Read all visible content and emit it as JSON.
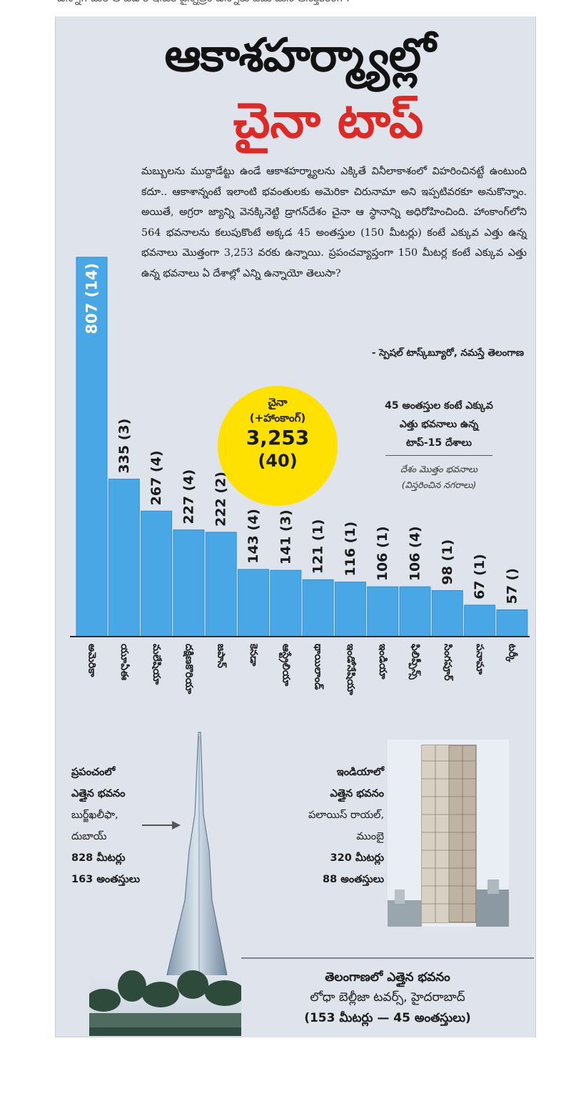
{
  "header_strip": "ఉన్నా.. మరి ఆ ఎడారి ఇసుక పైన్నిత్రం ఉన్నారు ఏమి మన ఆసక్తికరంగా.",
  "headline": {
    "line1": "ఆకాశహర్మ్యాల్లో",
    "line2": "చైనా టాప్"
  },
  "intro": "మబ్బులను ముద్దాడేట్టు ఉండే ఆకాశహర్మ్యాలను ఎక్కితే వినీలాకాశంలో విహరించినట్టే ఉంటుంది కదూ.. ఆకాశాన్నంటే ఇలాంటి భవంతులకు అమెరికా చిరునామా అని ఇప్పటివరకూ అనుకొన్నాం. అయితే, అగ్రరా జ్యాన్ని వెనక్కినెట్టి డ్రాగన్‌దేశం చైనా ఆ స్థానాన్ని అధిరోహించింది. హాంకాంగ్‌లోని 564 భవనాలను కలుపుకొంటే అక్కడ 45 అంతస్తుల (150 మీటర్లు) కంటే ఎక్కువ ఎత్తు ఉన్న భవనాలు మొత్తంగా 3,253 వరకు ఉన్నాయి. ప్రపంచవ్యాప్తంగా 150 మీటర్ల కంటే ఎక్కువ ఎత్తు ఉన్న భవనాలు ఏ దేశాల్లో ఎన్ని ఉన్నాయో తెలుసా?",
  "credit": "- స్పెషల్ టాస్క్‌బ్యూరో, నమస్తే తెలంగాణ",
  "china_callout": {
    "country": "చైనా",
    "note": "(+హాంకాంగ్)",
    "value": "3,253",
    "cities": "(40)"
  },
  "legend": {
    "title_lines": [
      "45 అంతస్తుల కంటే ఎక్కువ",
      "ఎత్తు భవనాలు ఉన్న",
      "టాప్-15 దేశాలు"
    ],
    "sub1": "దేశం మొత్తం భవనాలు",
    "sub2": "(విస్తరించిన నగరాలు)"
  },
  "colors": {
    "bar": "#4aa7e5",
    "bar_stroke": "#2f8fd1",
    "title_red": "#dd2a24",
    "callout": "#ffe100",
    "panel": "#dfe3ec"
  },
  "chart_data": {
    "type": "bar",
    "categories": [
      "అమెరికా",
      "యూఏఈ",
      "మలేషియా",
      "దక్షిణకొరియా",
      "జపాన్",
      "కెనడా",
      "ఆస్ట్రేలియా",
      "థాయిలాండ్",
      "ఇండోనేషియా",
      "ఇండియా",
      "ఫిలిప్పీన్స్",
      "సింగపూర్",
      "పనామా",
      "టర్కీ"
    ],
    "values": [
      807,
      335,
      267,
      227,
      222,
      143,
      141,
      121,
      116,
      106,
      106,
      98,
      67,
      57
    ],
    "labels": [
      "807 (14)",
      "335 (3)",
      "267 (4)",
      "227 (4)",
      "222 (2)",
      "143 (4)",
      "141 (3)",
      "121 (1)",
      "116 (1)",
      "106 (1)",
      "106 (4)",
      "98 (1)",
      "67 (1)",
      "57 ()"
    ],
    "ylim": [
      0,
      807
    ],
    "grid": false
  },
  "world_tallest": {
    "lines": [
      "ప్రపంచంలో",
      "ఎత్తైన భవనం",
      "బుర్జ్‌ఖలీఫా,",
      "దుబాయ్",
      "828 మీటర్లు",
      "163 అంతస్తులు"
    ]
  },
  "india_tallest": {
    "lines": [
      "ఇండియాలో",
      "ఎత్తైన భవనం",
      "పలాయిస్ రాయల్,",
      "ముంబై",
      "320 మీటర్లు",
      "88 అంతస్తులు"
    ]
  },
  "telangana_tallest": {
    "line1": "తెలంగాణలో ఎత్తైన భవనం",
    "line2": "లోధా బెల్లీజా టవర్స్, హైదరాబాద్",
    "line3": "(153 మీటర్లు — 45 అంతస్తులు)"
  }
}
